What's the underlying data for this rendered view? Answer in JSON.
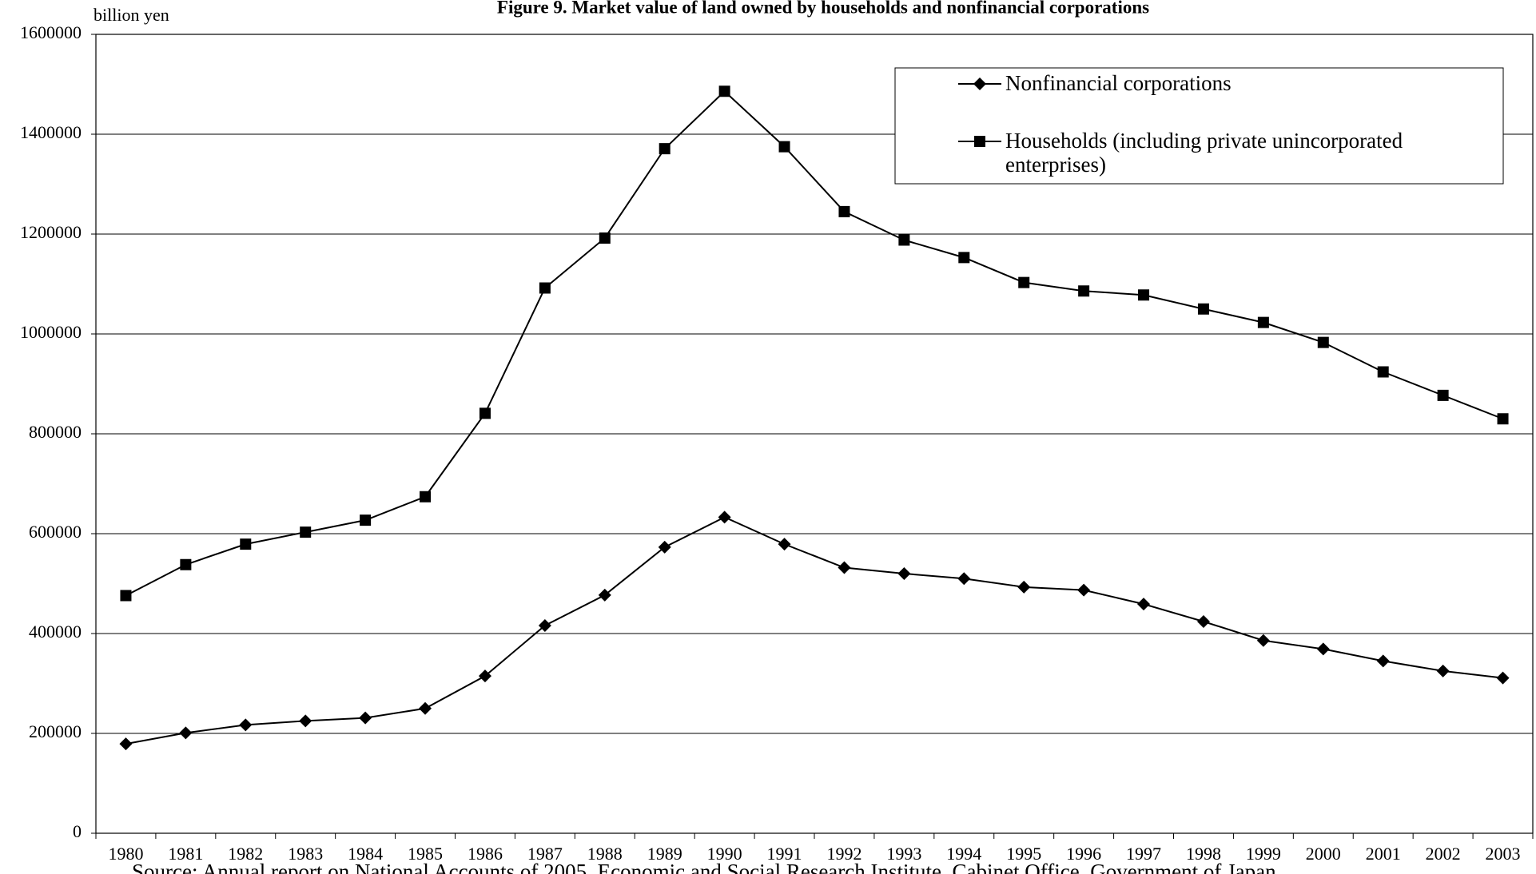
{
  "chart_data": {
    "type": "line",
    "title": "Figure 9. Market value of land owned by households and nonfinancial corporations",
    "y_label": "billion yen",
    "source": "Source: Annual report on National Accounts of 2005, Economic and Social Research Institute, Cabinet Office, Government of Japan",
    "categories": [
      "1980",
      "1981",
      "1982",
      "1983",
      "1984",
      "1985",
      "1986",
      "1987",
      "1988",
      "1989",
      "1990",
      "1991",
      "1992",
      "1993",
      "1994",
      "1995",
      "1996",
      "1997",
      "1998",
      "1999",
      "2000",
      "2001",
      "2002",
      "2003"
    ],
    "series": [
      {
        "name": "Nonfinancial corporations",
        "color": "#000000",
        "marker": "diamond",
        "values": [
          179000,
          201000,
          217000,
          225000,
          231000,
          250000,
          315000,
          416000,
          477000,
          573000,
          633000,
          579000,
          532000,
          520000,
          510000,
          493000,
          487000,
          459000,
          424000,
          386000,
          369000,
          345000,
          325000,
          311000
        ]
      },
      {
        "name": "Households (including private unincorporated enterprises)",
        "color": "#000000",
        "marker": "square",
        "values": [
          476000,
          538000,
          579000,
          603000,
          627000,
          674000,
          841000,
          1092000,
          1192000,
          1371000,
          1486000,
          1375000,
          1245000,
          1188000,
          1153000,
          1103000,
          1086000,
          1078000,
          1050000,
          1023000,
          983000,
          924000,
          877000,
          830000
        ]
      }
    ],
    "ylim": [
      0,
      1600000
    ],
    "yticks": [
      0,
      200000,
      400000,
      600000,
      800000,
      1000000,
      1200000,
      1400000,
      1600000
    ],
    "grid": true
  }
}
